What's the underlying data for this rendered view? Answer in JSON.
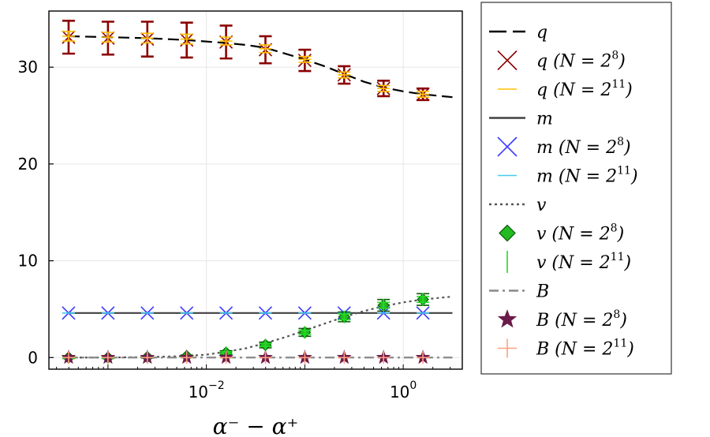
{
  "chart_data": {
    "type": "scatter",
    "title": "",
    "xlabel": "α⁻ − α⁺",
    "ylabel": "",
    "xscale": "log10",
    "xlim_log10": [
      -3.6,
      0.6
    ],
    "ylim": [
      -1.2,
      35.8
    ],
    "grid": true,
    "legend_position": "outside-right",
    "x_tick_labels": [
      {
        "log10": -2,
        "base": "10",
        "exp": "−2"
      },
      {
        "log10": 0,
        "base": "10",
        "exp": "0"
      }
    ],
    "y_ticks": [
      0,
      10,
      20,
      30
    ],
    "y_tick_labels": [
      "0",
      "10",
      "20",
      "30"
    ],
    "x_points_log10": [
      -3.4,
      -3.0,
      -2.6,
      -2.2,
      -1.8,
      -1.4,
      -1.0,
      -0.6,
      -0.2,
      0.2
    ],
    "series": [
      {
        "name": "q",
        "kind": "curve",
        "style": "dashed",
        "color": "#000000",
        "x_log10": [
          -3.4,
          -3.0,
          -2.6,
          -2.2,
          -1.8,
          -1.6,
          -1.4,
          -1.2,
          -1.0,
          -0.8,
          -0.6,
          -0.4,
          -0.2,
          0.0,
          0.2,
          0.4,
          0.5
        ],
        "values": [
          33.2,
          33.1,
          33.0,
          32.8,
          32.5,
          32.3,
          32.0,
          31.4,
          30.8,
          30.1,
          29.3,
          28.5,
          27.9,
          27.5,
          27.2,
          27.0,
          26.9
        ]
      },
      {
        "name": "q (N = 2^8)",
        "label_main": "q  (N = 2",
        "label_exp": "8",
        "label_end": ")",
        "kind": "errorbar",
        "marker": "x",
        "color": "#8b0000",
        "values": [
          33.1,
          33.0,
          32.9,
          32.8,
          32.6,
          31.8,
          30.7,
          29.2,
          27.8,
          27.2
        ],
        "errors": [
          1.7,
          1.7,
          1.8,
          1.8,
          1.7,
          1.4,
          1.1,
          0.9,
          0.8,
          0.6
        ]
      },
      {
        "name": "q (N = 2^11)",
        "label_main": "q  (N = 2",
        "label_exp": "11",
        "label_end": ")",
        "kind": "errorbar",
        "marker": "hline",
        "color": "#ffc000",
        "values": [
          33.2,
          33.1,
          33.0,
          32.9,
          32.7,
          31.9,
          30.8,
          29.2,
          27.8,
          27.2
        ],
        "errors": [
          0.5,
          0.5,
          0.5,
          0.5,
          0.4,
          0.4,
          0.3,
          0.3,
          0.3,
          0.3
        ]
      },
      {
        "name": "m",
        "kind": "curve",
        "style": "solid",
        "color": "#404040",
        "x_log10": [
          -3.4,
          0.5
        ],
        "values": [
          4.6,
          4.6
        ]
      },
      {
        "name": "m (N = 2^8)",
        "label_main": "m  (N = 2",
        "label_exp": "8",
        "label_end": ")",
        "kind": "points",
        "marker": "x",
        "color": "#3a3aff",
        "values": [
          4.6,
          4.6,
          4.6,
          4.6,
          4.6,
          4.6,
          4.6,
          4.6,
          4.6,
          4.6
        ]
      },
      {
        "name": "m (N = 2^11)",
        "label_main": "m  (N = 2",
        "label_exp": "11",
        "label_end": ")",
        "kind": "points",
        "marker": "hline",
        "color": "#44ccee",
        "values": [
          4.6,
          4.6,
          4.6,
          4.6,
          4.6,
          4.6,
          4.6,
          4.6,
          4.6,
          4.6
        ]
      },
      {
        "name": "v",
        "kind": "curve",
        "style": "dotted",
        "color": "#555555",
        "x_log10": [
          -3.4,
          -3.0,
          -2.6,
          -2.2,
          -2.0,
          -1.8,
          -1.6,
          -1.4,
          -1.2,
          -1.0,
          -0.8,
          -0.6,
          -0.4,
          -0.2,
          0.0,
          0.2,
          0.4,
          0.5
        ],
        "values": [
          0.0,
          0.0,
          0.05,
          0.15,
          0.3,
          0.6,
          0.95,
          1.5,
          2.1,
          2.8,
          3.5,
          4.2,
          4.8,
          5.3,
          5.7,
          6.0,
          6.2,
          6.3
        ]
      },
      {
        "name": "v (N = 2^8)",
        "label_main": "v  (N = 2",
        "label_exp": "8",
        "label_end": ")",
        "kind": "errorbar",
        "marker": "diamond",
        "color": "#0a5a0a",
        "fill": "#22bb22",
        "values": [
          0.0,
          0.0,
          0.05,
          0.15,
          0.5,
          1.3,
          2.6,
          4.2,
          5.4,
          6.0
        ],
        "errors": [
          0.1,
          0.1,
          0.1,
          0.1,
          0.2,
          0.3,
          0.4,
          0.5,
          0.6,
          0.6
        ]
      },
      {
        "name": "v (N = 2^11)",
        "label_main": "v  (N = 2",
        "label_exp": "11",
        "label_end": ")",
        "kind": "errorbar",
        "marker": "vline",
        "color": "#22dd22",
        "values": [
          0.0,
          0.0,
          0.05,
          0.15,
          0.5,
          1.3,
          2.6,
          4.2,
          5.4,
          6.0
        ],
        "errors": [
          0.05,
          0.05,
          0.05,
          0.05,
          0.1,
          0.15,
          0.2,
          0.3,
          0.3,
          0.3
        ]
      },
      {
        "name": "B",
        "kind": "curve",
        "style": "dashdot",
        "color": "#888888",
        "x_log10": [
          -3.4,
          0.5
        ],
        "values": [
          0.0,
          0.0
        ]
      },
      {
        "name": "B (N = 2^8)",
        "label_main": "B  (N = 2",
        "label_exp": "8",
        "label_end": ")",
        "kind": "points",
        "marker": "star",
        "color": "#6b1a4a",
        "values": [
          0.0,
          0.0,
          0.0,
          0.0,
          0.0,
          0.0,
          0.0,
          0.0,
          0.0,
          0.0
        ]
      },
      {
        "name": "B (N = 2^11)",
        "label_main": "B  (N = 2",
        "label_exp": "11",
        "label_end": ")",
        "kind": "points",
        "marker": "plus",
        "color": "#ff9f80",
        "values": [
          0.0,
          0.0,
          0.0,
          0.0,
          0.0,
          0.0,
          0.0,
          0.0,
          0.0,
          0.0
        ]
      }
    ]
  }
}
